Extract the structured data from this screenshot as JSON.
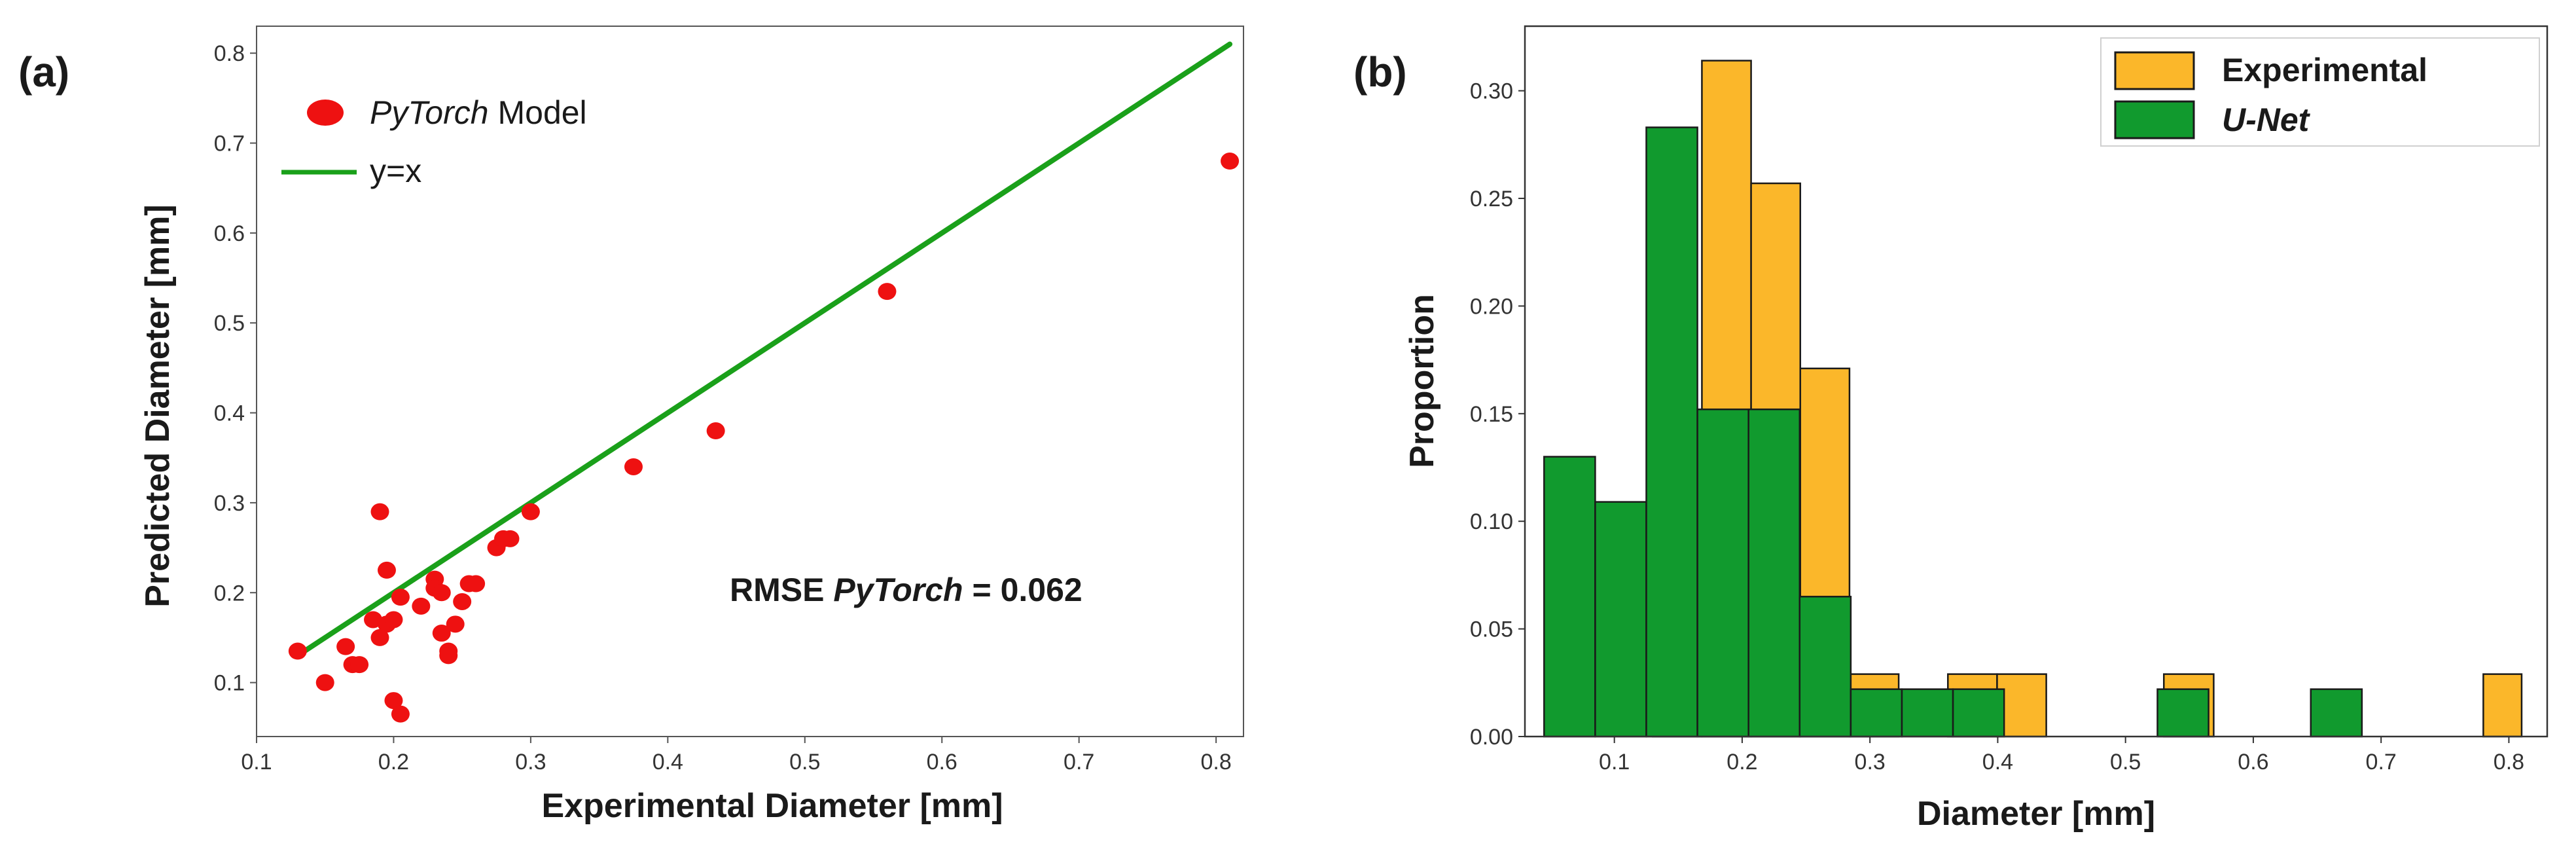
{
  "chart_data": [
    {
      "type": "scatter",
      "panel_label": "(a)",
      "xlabel": "Experimental Diameter [mm]",
      "ylabel": "Predicted Diameter [mm]",
      "xlim": [
        0.1,
        0.82
      ],
      "ylim": [
        0.04,
        0.83
      ],
      "xticks": [
        "0.1",
        "0.2",
        "0.3",
        "0.4",
        "0.5",
        "0.6",
        "0.7",
        "0.8"
      ],
      "yticks": [
        "0.1",
        "0.2",
        "0.3",
        "0.4",
        "0.5",
        "0.6",
        "0.7",
        "0.8"
      ],
      "series": [
        {
          "name_italic": "PyTorch",
          "name_rest": "Model",
          "marker": "dot",
          "color": "#ee1111",
          "points": [
            [
              0.13,
              0.135
            ],
            [
              0.15,
              0.1
            ],
            [
              0.165,
              0.14
            ],
            [
              0.17,
              0.12
            ],
            [
              0.175,
              0.12
            ],
            [
              0.185,
              0.17
            ],
            [
              0.19,
              0.29
            ],
            [
              0.19,
              0.15
            ],
            [
              0.195,
              0.225
            ],
            [
              0.195,
              0.165
            ],
            [
              0.2,
              0.08
            ],
            [
              0.2,
              0.17
            ],
            [
              0.205,
              0.195
            ],
            [
              0.205,
              0.065
            ],
            [
              0.22,
              0.185
            ],
            [
              0.23,
              0.215
            ],
            [
              0.23,
              0.205
            ],
            [
              0.235,
              0.2
            ],
            [
              0.235,
              0.155
            ],
            [
              0.24,
              0.135
            ],
            [
              0.24,
              0.13
            ],
            [
              0.245,
              0.165
            ],
            [
              0.25,
              0.19
            ],
            [
              0.255,
              0.21
            ],
            [
              0.26,
              0.21
            ],
            [
              0.275,
              0.25
            ],
            [
              0.28,
              0.26
            ],
            [
              0.285,
              0.26
            ],
            [
              0.3,
              0.29
            ],
            [
              0.375,
              0.34
            ],
            [
              0.435,
              0.38
            ],
            [
              0.56,
              0.535
            ],
            [
              0.81,
              0.68
            ]
          ]
        },
        {
          "name": "y=x",
          "marker": "line",
          "color": "#1aa01a",
          "points": [
            [
              0.13,
              0.13
            ],
            [
              0.81,
              0.81
            ]
          ]
        }
      ],
      "annotation_prefix": "RMSE",
      "annotation_italic": "PyTorch",
      "annotation_suffix": "= 0.062"
    },
    {
      "type": "histogram",
      "panel_label": "(b)",
      "xlabel": "Diameter [mm]",
      "ylabel": "Proportion",
      "xlim": [
        0.03,
        0.83
      ],
      "ylim": [
        0,
        0.33
      ],
      "xticks": [
        "0.1",
        "0.2",
        "0.3",
        "0.4",
        "0.5",
        "0.6",
        "0.7",
        "0.8"
      ],
      "yticks": [
        "0.00",
        "0.05",
        "0.10",
        "0.15",
        "0.20",
        "0.25",
        "0.30"
      ],
      "series": [
        {
          "name": "Experimental",
          "italic": false,
          "color": "#fbb72a",
          "bins": [
            [
              0.13,
              0.1685,
              0.114
            ],
            [
              0.1685,
              0.207,
              0.314
            ],
            [
              0.207,
              0.2455,
              0.257
            ],
            [
              0.2455,
              0.284,
              0.171
            ],
            [
              0.284,
              0.3225,
              0.029
            ],
            [
              0.361,
              0.3995,
              0.029
            ],
            [
              0.3995,
              0.438,
              0.029
            ],
            [
              0.53,
              0.569,
              0.029
            ],
            [
              0.78,
              0.81,
              0.029
            ]
          ]
        },
        {
          "name": "U-Net",
          "italic": true,
          "color": "#119a2e",
          "bins": [
            [
              0.045,
              0.085,
              0.13
            ],
            [
              0.085,
              0.125,
              0.109
            ],
            [
              0.125,
              0.165,
              0.283
            ],
            [
              0.165,
              0.205,
              0.152
            ],
            [
              0.205,
              0.245,
              0.152
            ],
            [
              0.245,
              0.285,
              0.065
            ],
            [
              0.285,
              0.325,
              0.022
            ],
            [
              0.325,
              0.365,
              0.022
            ],
            [
              0.365,
              0.405,
              0.022
            ],
            [
              0.525,
              0.565,
              0.022
            ],
            [
              0.645,
              0.685,
              0.022
            ]
          ]
        }
      ]
    }
  ]
}
